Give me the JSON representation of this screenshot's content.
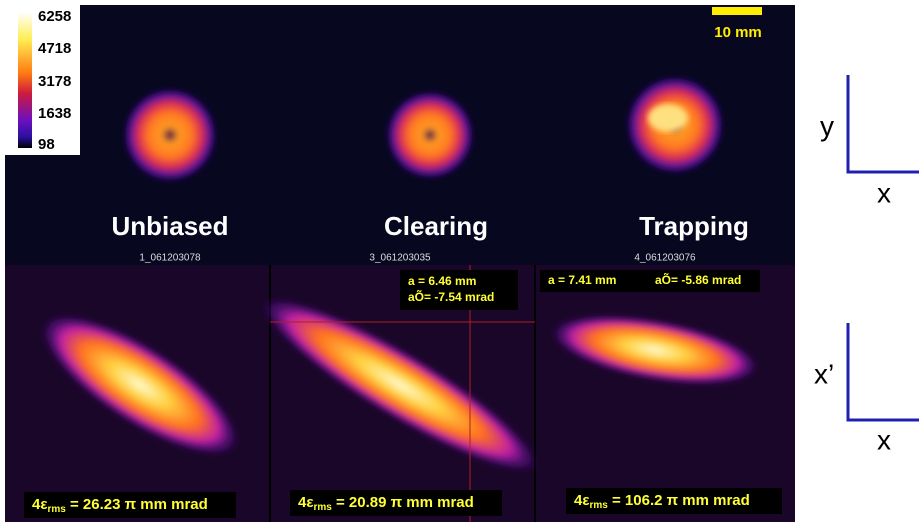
{
  "colorbar": {
    "ticks": [
      6258,
      4718,
      3178,
      1638,
      98
    ]
  },
  "scale_bar": "10 mm",
  "panels": [
    {
      "label": "Unbiased",
      "file": "1_061203078",
      "emittance_symbol": "4ε",
      "emittance_sub": "rms",
      "emittance_value": " = 26.23 π mm mrad"
    },
    {
      "label": "Clearing",
      "file": "3_061203035",
      "alpha": "a = 6.46 mm",
      "alpha_prime": "aÕ= -7.54 mrad",
      "emittance_symbol": "4ε",
      "emittance_sub": "rms",
      "emittance_value": " = 20.89 π mm mrad"
    },
    {
      "label": "Trapping",
      "file": "4_061203076",
      "alpha": "a = 7.41 mm",
      "alpha_prime": "aÕ= -5.86 mrad",
      "emittance_symbol": "4ε",
      "emittance_sub": "rms",
      "emittance_value": " = 106.2 π mm mrad"
    }
  ],
  "axes": [
    {
      "vertical": "y",
      "horizontal": "x"
    },
    {
      "vertical": "x’",
      "horizontal": "x"
    }
  ]
}
